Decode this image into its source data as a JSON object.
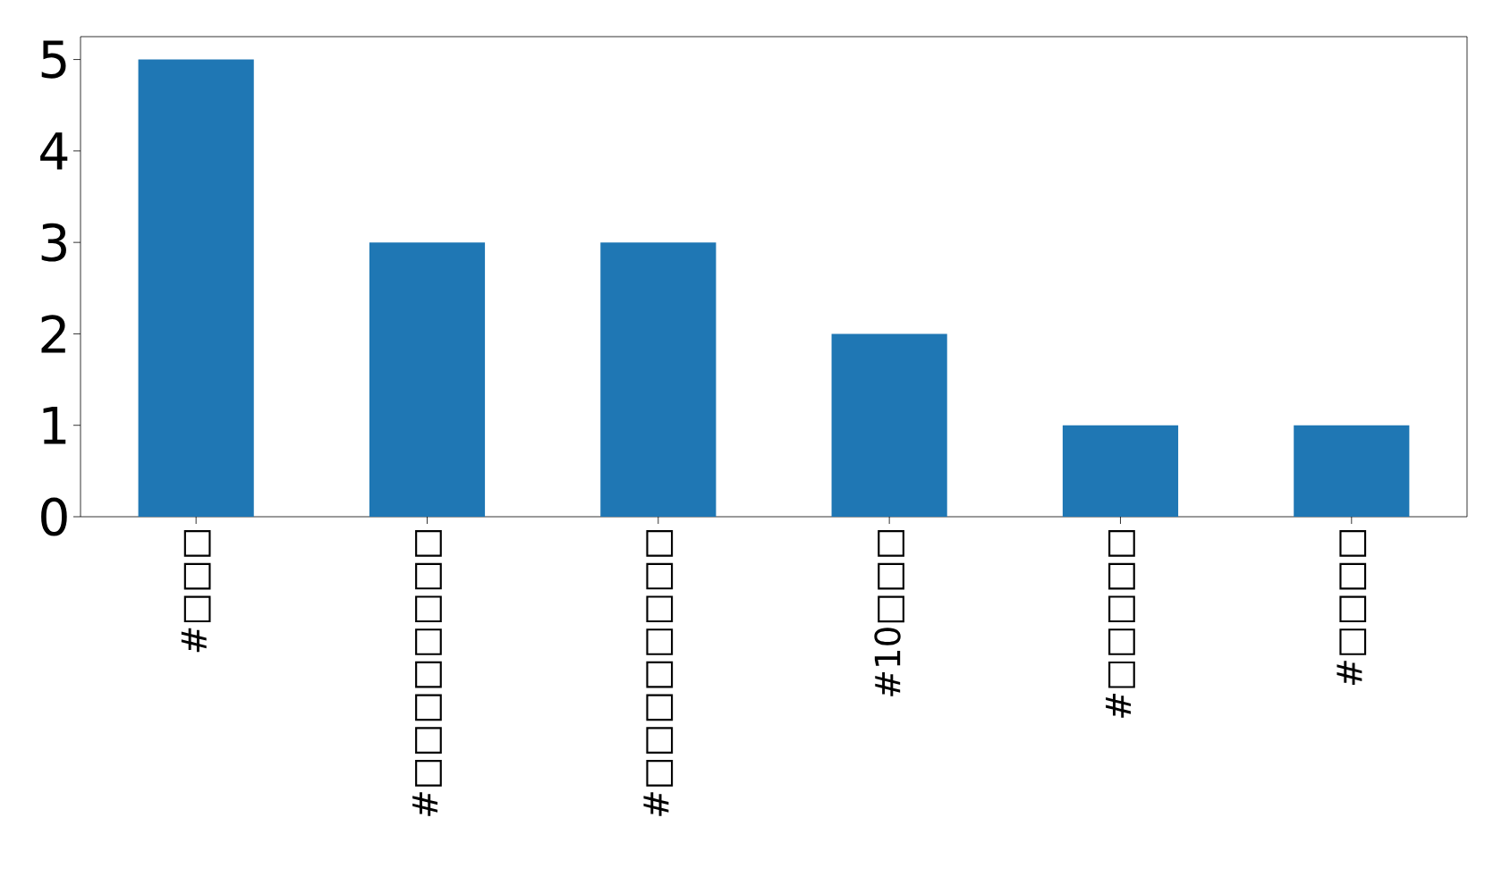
{
  "chart_data": {
    "type": "bar",
    "categories": [
      "#□□□",
      "#□□□□□□□□",
      "#□□□□□□□□",
      "#10□□□",
      "#□□□□□",
      "#□□□□"
    ],
    "values": [
      5,
      3,
      3,
      2,
      1,
      1
    ],
    "color": "#1f77b4",
    "ylim": [
      0,
      5.25
    ],
    "yticks": [
      0,
      1,
      2,
      3,
      4,
      5
    ],
    "grid": false
  }
}
